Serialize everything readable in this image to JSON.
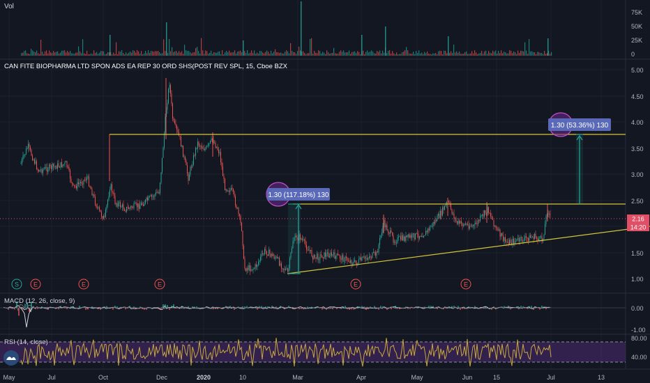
{
  "vol_panel": {
    "label": "Vol",
    "ticks": [
      "75K",
      "50K",
      "25K",
      "0"
    ]
  },
  "price_panel": {
    "title": "CAN FITE BIOPHARMA LTD SPON ADS EA REP 30 ORD SHS(POST REV SPL, 15, Cboe BZX",
    "ticks": [
      "5.00",
      "4.50",
      "4.00",
      "3.50",
      "3.00",
      "2.50",
      "2.00",
      "1.50",
      "1.00"
    ],
    "last_price": "2.16",
    "countdown": "14:20",
    "measure_1": "1.30 (117.18%) 130",
    "measure_2": "1.30 (53.36%) 130",
    "events": [
      "S",
      "E",
      "E",
      "E",
      "E",
      "E"
    ]
  },
  "macd_panel": {
    "label": "MACD (12, 26, close, 9)",
    "ticks": [
      "0.00",
      "-1.00"
    ]
  },
  "rsi_panel": {
    "label": "RSI (14, close)",
    "ticks": [
      "80.00",
      "40.00"
    ]
  },
  "time_axis": [
    "May",
    "Jul",
    "Oct",
    "Dec",
    "2020",
    "10",
    "Mar",
    "Apr",
    "May",
    "Jun",
    "15",
    "Jul",
    "13"
  ],
  "colors": {
    "background": "#131722",
    "up": "#26a69a",
    "down": "#ef5350",
    "trendline": "#d4c53a",
    "rsi_line": "#c9a93c",
    "rsi_band": "#4b2a70",
    "measure_label": "#5a6ab8",
    "price_label": "#e04f66"
  }
}
